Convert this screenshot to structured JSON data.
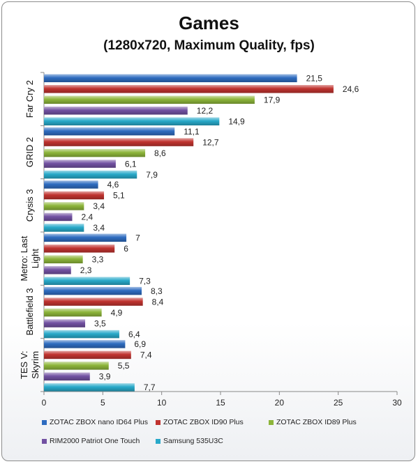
{
  "title": "Games",
  "subtitle": "(1280x720, Maximum Quality, fps)",
  "chart_data": {
    "type": "bar",
    "orientation": "horizontal",
    "title": "Games",
    "subtitle": "(1280x720, Maximum Quality, fps)",
    "xlabel": "",
    "ylabel": "",
    "xlim": [
      0,
      30
    ],
    "xticks": [
      "0",
      "5",
      "10",
      "15",
      "20",
      "25",
      "30"
    ],
    "grid": false,
    "legend_position": "bottom",
    "categories": [
      "Far Cry 2",
      "GRID 2",
      "Crysis 3",
      "Metro: Last Light",
      "Battlefield 3",
      "TES V: Skyrim"
    ],
    "category_lines": [
      [
        "Far Cry 2"
      ],
      [
        "GRID 2"
      ],
      [
        "Crysis 3"
      ],
      [
        "Metro: Last",
        "Light"
      ],
      [
        "Battlefield 3"
      ],
      [
        "TES V:",
        "Skyrim"
      ]
    ],
    "series": [
      {
        "name": "ZOTAC ZBOX nano ID64 Plus",
        "color": "#2e6cc0",
        "values": [
          21.5,
          11.1,
          4.6,
          7,
          8.3,
          6.9
        ],
        "labels": [
          "21,5",
          "11,1",
          "4,6",
          "7",
          "8,3",
          "6,9"
        ]
      },
      {
        "name": "ZOTAC ZBOX ID90 Plus",
        "color": "#c0332f",
        "values": [
          24.6,
          12.7,
          5.1,
          6,
          8.4,
          7.4
        ],
        "labels": [
          "24,6",
          "12,7",
          "5,1",
          "6",
          "8,4",
          "7,4"
        ]
      },
      {
        "name": "ZOTAC ZBOX ID89 Plus",
        "color": "#8db53a",
        "values": [
          17.9,
          8.6,
          3.4,
          3.3,
          4.9,
          5.5
        ],
        "labels": [
          "17,9",
          "8,6",
          "3,4",
          "3,3",
          "4,9",
          "5,5"
        ]
      },
      {
        "name": "RIM2000 Patriot One Touch",
        "color": "#7251a2",
        "values": [
          12.2,
          6.1,
          2.4,
          2.3,
          3.5,
          3.9
        ],
        "labels": [
          "12,2",
          "6,1",
          "2,4",
          "2,3",
          "3,5",
          "3,9"
        ]
      },
      {
        "name": "Samsung 535U3C",
        "color": "#28a9c9",
        "values": [
          14.9,
          7.9,
          3.4,
          7.3,
          6.4,
          7.7
        ],
        "labels": [
          "14,9",
          "7,9",
          "3,4",
          "7,3",
          "6,4",
          "7,7"
        ]
      }
    ]
  }
}
